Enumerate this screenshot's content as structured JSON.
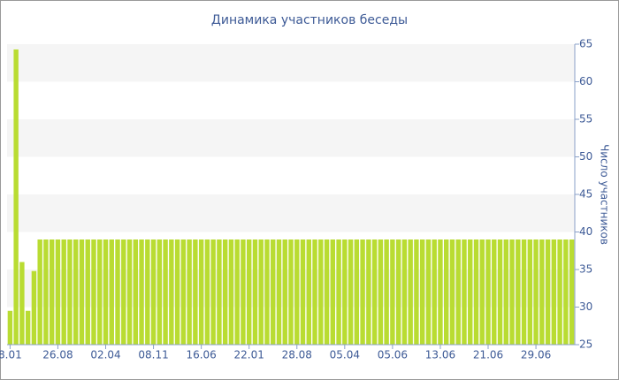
{
  "chart_data": {
    "type": "bar",
    "title": "Динамика участников беседы",
    "y_label": "Число участников",
    "categories": [
      "8.01",
      null,
      null,
      null,
      null,
      null,
      null,
      null,
      "26.08",
      null,
      null,
      null,
      null,
      null,
      null,
      null,
      "02.04",
      null,
      null,
      null,
      null,
      null,
      null,
      null,
      "08.11",
      null,
      null,
      null,
      null,
      null,
      null,
      null,
      "16.06",
      null,
      null,
      null,
      null,
      null,
      null,
      null,
      "22.01",
      null,
      null,
      null,
      null,
      null,
      null,
      null,
      "28.08",
      null,
      null,
      null,
      null,
      null,
      null,
      null,
      "05.04",
      null,
      null,
      null,
      null,
      null,
      null,
      null,
      "05.06",
      null,
      null,
      null,
      null,
      null,
      null,
      null,
      "13.06",
      null,
      null,
      null,
      null,
      null,
      null,
      null,
      "21.06",
      null,
      null,
      null,
      null,
      null,
      null,
      null,
      "29.06",
      null,
      null,
      null,
      null,
      null,
      null
    ],
    "values": [
      29.5,
      64.3,
      36,
      29.5,
      34.8,
      39,
      39,
      39,
      39,
      39,
      39,
      39,
      39,
      39,
      39,
      39,
      39,
      39,
      39,
      39,
      39,
      39,
      39,
      39,
      39,
      39,
      39,
      39,
      39,
      39,
      39,
      39,
      39,
      39,
      39,
      39,
      39,
      39,
      39,
      39,
      39,
      39,
      39,
      39,
      39,
      39,
      39,
      39,
      39,
      39,
      39,
      39,
      39,
      39,
      39,
      39,
      39,
      39,
      39,
      39,
      39,
      39,
      39,
      39,
      39,
      39,
      39,
      39,
      39,
      39,
      39,
      39,
      39,
      39,
      39,
      39,
      39,
      39,
      39,
      39,
      39,
      39,
      39,
      39,
      39,
      39,
      39,
      39,
      39,
      39,
      39,
      39,
      39,
      39,
      39
    ],
    "color": "#b9dc32",
    "ylim": [
      25,
      65
    ],
    "yticks": [
      25,
      30,
      35,
      40,
      45,
      50,
      55,
      60,
      65
    ],
    "y_axis_side": "right",
    "alternate_bands": true
  }
}
